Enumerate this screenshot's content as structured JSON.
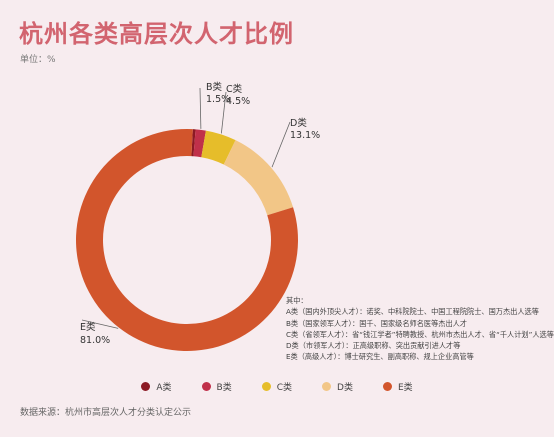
{
  "title": "杭州各类高层次人才比例",
  "unit_label": "单位：%",
  "colors": {
    "A": "#8b1a24",
    "B": "#c0304a",
    "C": "#e6bd2a",
    "D": "#f2c687",
    "E": "#d2552c",
    "leader": "#666666"
  },
  "chart_data": {
    "type": "pie",
    "categories": [
      "A类",
      "B类",
      "C类",
      "D类",
      "E类"
    ],
    "values": [
      0.4,
      1.5,
      4.5,
      13.1,
      81.0
    ],
    "value_labels": [
      null,
      "1.5%",
      "4.5%",
      "13.1%",
      "81.0%"
    ],
    "donut": true,
    "legend_position": "bottom"
  },
  "notes": {
    "heading": "其中：",
    "lines": [
      "A类（国内外顶尖人才）：诺奖、中科院院士、中国工程院院士、国万杰出人选等",
      "B类（国家领军人才）：国千、国家级名师名医等杰出人才",
      "C类（省领军人才）：省“钱江学者”特聘教授、杭州市杰出人才、省“千人计划”人选等",
      "D类（市领军人才）：正高级职称、突出贡献引进人才等",
      "E类（高级人才）：博士研究生、副高职称、规上企业高管等"
    ]
  },
  "legend": [
    {
      "label": "A类",
      "color": "#8b1a24"
    },
    {
      "label": "B类",
      "color": "#c0304a"
    },
    {
      "label": "C类",
      "color": "#e6bd2a"
    },
    {
      "label": "D类",
      "color": "#f2c687"
    },
    {
      "label": "E类",
      "color": "#d2552c"
    }
  ],
  "source": "数据来源：杭州市高层次人才分类认定公示"
}
